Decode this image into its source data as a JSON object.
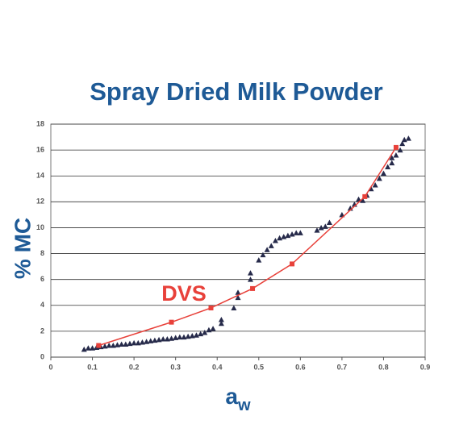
{
  "chart_data": {
    "type": "scatter",
    "title": "Spray Dried Milk Powder",
    "ylabel": "% MC",
    "xlabel": {
      "main": "a",
      "sub": "w"
    },
    "annotation": "DVS",
    "xlim": [
      0,
      0.9
    ],
    "xticks": [
      0,
      0.1,
      0.2,
      0.3,
      0.4,
      0.5,
      0.6,
      0.7,
      0.8,
      0.9
    ],
    "ylim": [
      0,
      18
    ],
    "yticks": [
      0,
      2,
      4,
      6,
      8,
      10,
      12,
      14,
      16,
      18
    ],
    "grid": true,
    "series": [
      {
        "color": "#262a4a",
        "marker": "triangle",
        "line": false,
        "x": [
          0.08,
          0.09,
          0.1,
          0.11,
          0.12,
          0.13,
          0.14,
          0.15,
          0.16,
          0.17,
          0.18,
          0.19,
          0.2,
          0.21,
          0.22,
          0.23,
          0.24,
          0.25,
          0.26,
          0.27,
          0.28,
          0.29,
          0.3,
          0.31,
          0.32,
          0.33,
          0.34,
          0.35,
          0.36,
          0.37,
          0.38,
          0.39,
          0.41,
          0.41,
          0.44,
          0.45,
          0.45,
          0.48,
          0.48,
          0.5,
          0.51,
          0.52,
          0.53,
          0.54,
          0.55,
          0.56,
          0.57,
          0.58,
          0.59,
          0.6,
          0.64,
          0.65,
          0.66,
          0.67,
          0.7,
          0.72,
          0.73,
          0.74,
          0.75,
          0.76,
          0.77,
          0.78,
          0.79,
          0.8,
          0.81,
          0.82,
          0.82,
          0.83,
          0.84,
          0.845,
          0.85,
          0.86
        ],
        "values": [
          0.6,
          0.7,
          0.7,
          0.75,
          0.8,
          0.85,
          0.9,
          0.9,
          0.95,
          1.0,
          1.0,
          1.05,
          1.1,
          1.1,
          1.15,
          1.2,
          1.25,
          1.3,
          1.35,
          1.4,
          1.4,
          1.45,
          1.5,
          1.55,
          1.55,
          1.6,
          1.65,
          1.7,
          1.8,
          1.9,
          2.1,
          2.2,
          2.6,
          2.9,
          3.8,
          4.6,
          5.0,
          6.0,
          6.5,
          7.5,
          7.9,
          8.3,
          8.6,
          9.0,
          9.2,
          9.3,
          9.4,
          9.5,
          9.6,
          9.6,
          9.8,
          10.0,
          10.1,
          10.4,
          11.0,
          11.5,
          11.8,
          12.2,
          12.1,
          12.5,
          13.0,
          13.3,
          13.8,
          14.2,
          14.7,
          15.0,
          15.4,
          15.6,
          16.0,
          16.5,
          16.8,
          16.9
        ]
      },
      {
        "color": "#e8413a",
        "marker": "square",
        "line": true,
        "x": [
          0.115,
          0.29,
          0.385,
          0.485,
          0.58,
          0.755,
          0.83
        ],
        "values": [
          0.9,
          2.7,
          3.8,
          5.3,
          7.2,
          12.4,
          16.2
        ]
      }
    ]
  }
}
